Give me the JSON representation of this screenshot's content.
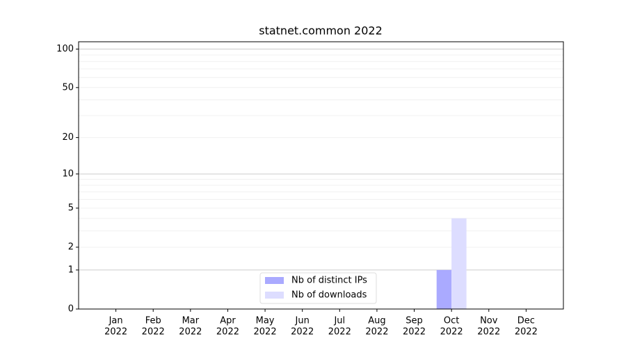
{
  "chart_data": {
    "type": "bar",
    "title": "statnet.common 2022",
    "categories": [
      [
        "Jan",
        "2022"
      ],
      [
        "Feb",
        "2022"
      ],
      [
        "Mar",
        "2022"
      ],
      [
        "Apr",
        "2022"
      ],
      [
        "May",
        "2022"
      ],
      [
        "Jun",
        "2022"
      ],
      [
        "Jul",
        "2022"
      ],
      [
        "Aug",
        "2022"
      ],
      [
        "Sep",
        "2022"
      ],
      [
        "Oct",
        "2022"
      ],
      [
        "Nov",
        "2022"
      ],
      [
        "Dec",
        "2022"
      ]
    ],
    "series": [
      {
        "name": "Nb of distinct IPs",
        "color": "#aaaaff",
        "values": [
          0,
          0,
          0,
          0,
          0,
          0,
          0,
          0,
          0,
          1,
          0,
          0
        ]
      },
      {
        "name": "Nb of downloads",
        "color": "#ddddff",
        "values": [
          0,
          0,
          0,
          0,
          0,
          0,
          0,
          0,
          0,
          4,
          0,
          0
        ]
      }
    ],
    "yscale": "log1p",
    "ylim": [
      0,
      114
    ],
    "yticks": [
      0,
      1,
      2,
      5,
      10,
      20,
      50,
      100
    ],
    "major_grid": [
      1,
      10,
      100
    ],
    "minor_grid": [
      2,
      3,
      4,
      5,
      6,
      7,
      8,
      9,
      20,
      30,
      40,
      50,
      60,
      70,
      80,
      90
    ],
    "grid": true,
    "legend": "lower center"
  }
}
